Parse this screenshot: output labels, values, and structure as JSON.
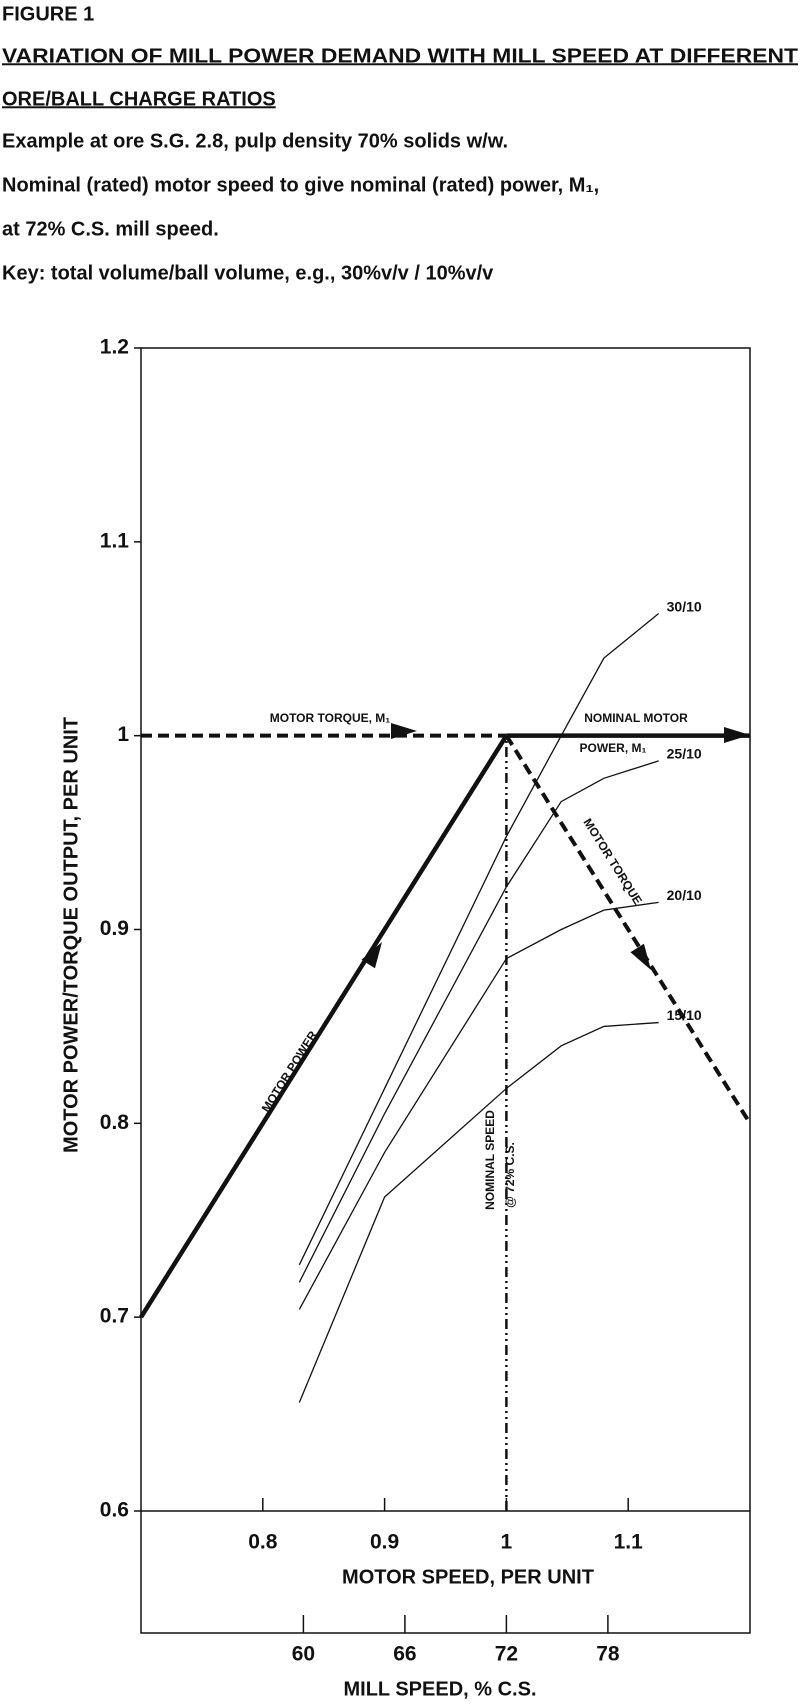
{
  "chart_data": {
    "type": "line",
    "figure_label": "FIGURE 1",
    "title": [
      "VARIATION OF MILL POWER DEMAND WITH MILL SPEED AT DIFFERENT",
      "ORE/BALL CHARGE RATIOS"
    ],
    "subtitle": [
      "Example at ore S.G. 2.8, pulp density 70% solids w/w.",
      "Nominal (rated) motor speed to give nominal (rated) power, M₁,",
      "at 72% C.S. mill speed.",
      "Key: total volume/ball volume, e.g., 30%v/v / 10%v/v"
    ],
    "ylabel": "MOTOR POWER/TORQUE OUTPUT, PER UNIT",
    "xlabel": "MOTOR SPEED, PER UNIT",
    "x2label": "MILL SPEED, % C.S.",
    "xlim": [
      0.7,
      1.2
    ],
    "xticks": [
      0.8,
      0.9,
      1,
      1.1
    ],
    "x2lim": [
      50.4,
      86.4
    ],
    "x2ticks": [
      60,
      66,
      72,
      78
    ],
    "ylim": [
      0.6,
      1.2
    ],
    "yticks": [
      0.6,
      0.7,
      0.8,
      0.9,
      1,
      1.1,
      1.2
    ],
    "color": "#111111",
    "series": [
      {
        "name": "MOTOR POWER",
        "style": "solid",
        "x": [
          0.7,
          1.0
        ],
        "values": [
          0.7,
          1.0
        ]
      },
      {
        "name": "MOTOR TORQUE, M₁",
        "style": "dashed",
        "x": [
          0.7,
          1.0
        ],
        "values": [
          1.0,
          1.0
        ]
      },
      {
        "style": "solid",
        "x": [
          1.0,
          1.2
        ],
        "values": [
          1.0,
          1.0
        ]
      },
      {
        "name": "MOTOR TORQUE",
        "style": "dashed",
        "x": [
          1.0,
          1.2
        ],
        "values": [
          1.0,
          0.8
        ]
      },
      {
        "style": "dashdot",
        "x": [
          1.0,
          1.0
        ],
        "values": [
          0.6,
          1.0
        ]
      },
      {
        "name": "30/10",
        "style": "thin",
        "x": [
          0.83,
          0.9,
          1.0,
          1.045,
          1.08,
          1.125
        ],
        "values": [
          0.727,
          0.818,
          0.948,
          1.0,
          1.04,
          1.063
        ]
      },
      {
        "name": "25/10",
        "style": "thin",
        "x": [
          0.83,
          0.9,
          1.0,
          1.045,
          1.08,
          1.125
        ],
        "values": [
          0.718,
          0.805,
          0.922,
          0.966,
          0.978,
          0.987
        ]
      },
      {
        "name": "20/10",
        "style": "thin",
        "x": [
          0.83,
          0.9,
          1.0,
          1.045,
          1.08,
          1.125
        ],
        "values": [
          0.704,
          0.785,
          0.885,
          0.9,
          0.91,
          0.914
        ]
      },
      {
        "name": "15/10",
        "style": "thin",
        "x": [
          0.83,
          0.9,
          1.0,
          1.045,
          1.08,
          1.125
        ],
        "values": [
          0.656,
          0.762,
          0.818,
          0.84,
          0.85,
          0.852
        ]
      }
    ],
    "annotations": [
      "NOMINAL MOTOR",
      "POWER, M₁",
      "NOMINAL SPEED",
      "@ 72% C.S."
    ]
  }
}
